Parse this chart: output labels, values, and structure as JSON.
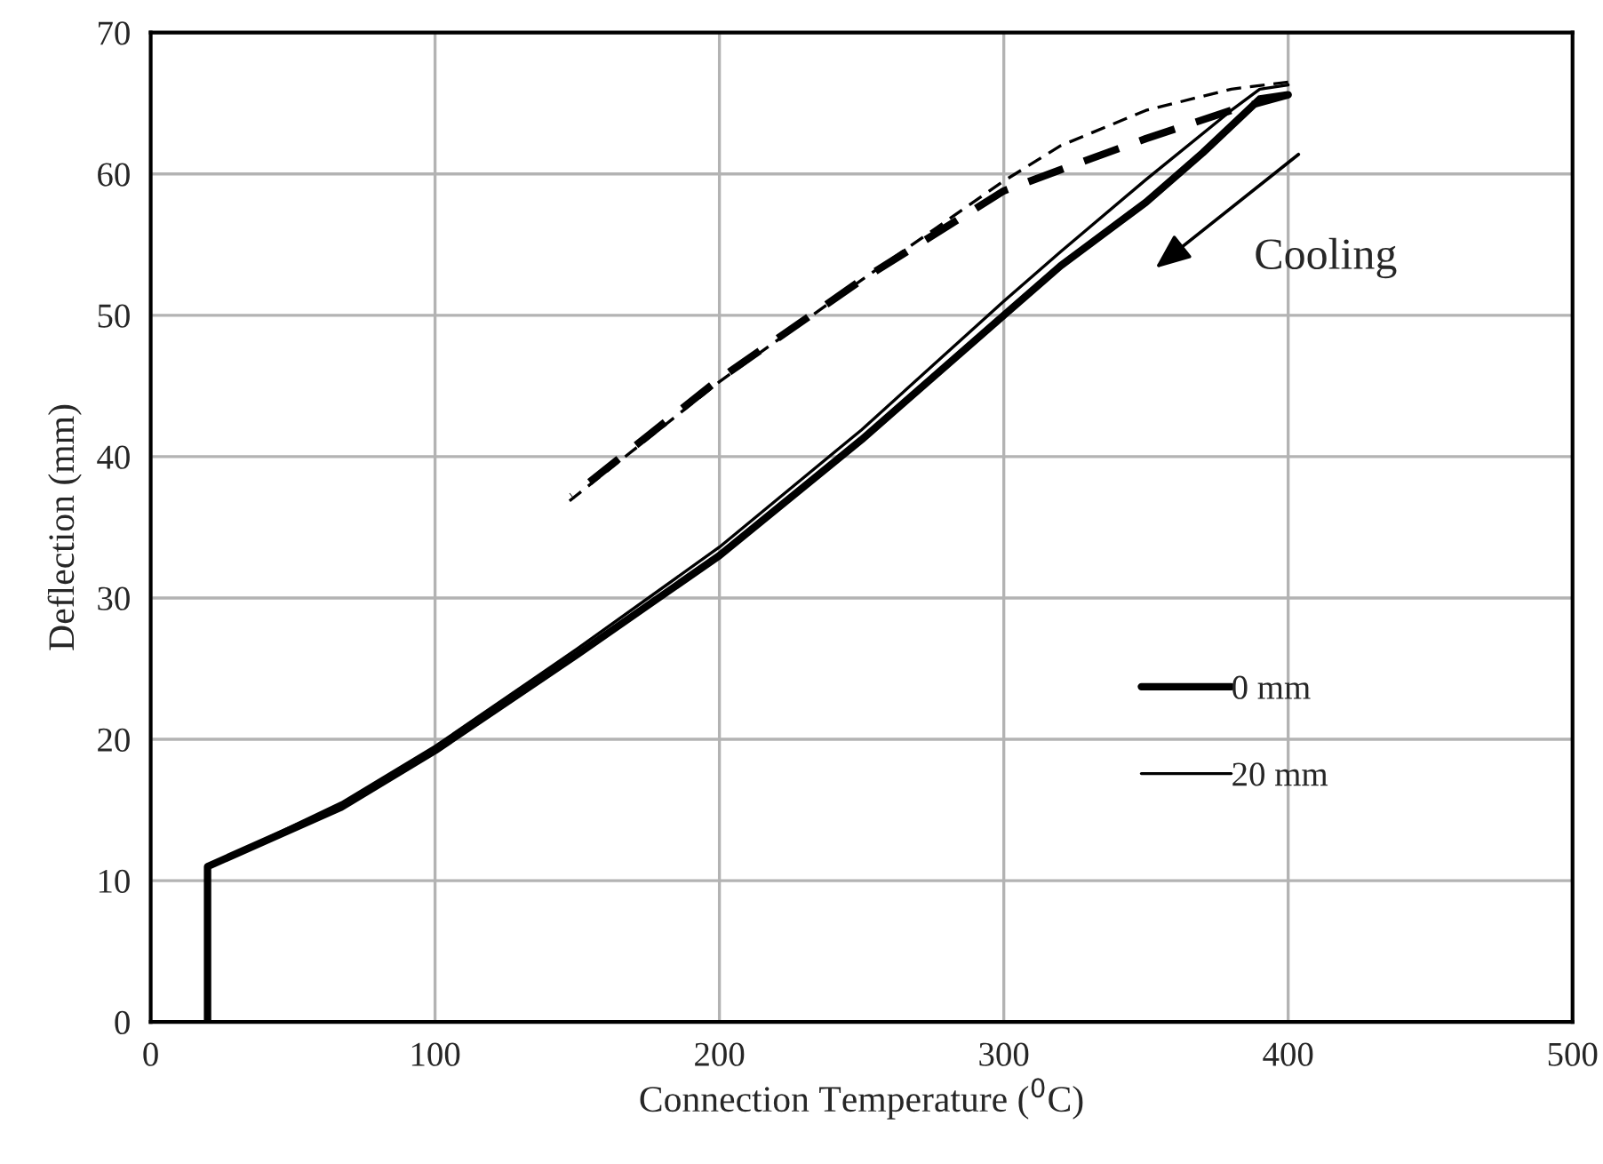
{
  "chart_data": {
    "type": "line",
    "xlabel": "Connection Temperature ($^{0}$C)",
    "ylabel": "Deflection (mm)",
    "xlim": [
      0,
      500
    ],
    "ylim": [
      0,
      70
    ],
    "xticks": [
      0,
      100,
      200,
      300,
      400,
      500
    ],
    "yticks": [
      0,
      10,
      20,
      30,
      40,
      50,
      60,
      70
    ],
    "grid": true,
    "legend": "bottom right",
    "marker": "none",
    "series": [
      {
        "name": "0 mm",
        "color": "#000000",
        "line_style": "solid",
        "x": [
          20,
          20,
          67,
          100,
          150,
          200,
          250,
          300,
          320,
          350,
          370,
          390,
          400
        ],
        "values": [
          0,
          11,
          15.2,
          19.2,
          26,
          33,
          41.2,
          50,
          53.5,
          58,
          61.5,
          65.3,
          65.6
        ]
      },
      {
        "color": "#000000",
        "line_style": "dashed",
        "x": [
          400,
          380,
          350,
          320,
          300,
          250,
          200,
          175,
          148
        ],
        "values": [
          65.6,
          64.5,
          62.5,
          60.3,
          58.8,
          52.5,
          45.5,
          41.5,
          37.2
        ]
      },
      {
        "name": "20 mm",
        "color": "#000000",
        "line_style": "solid",
        "x": [
          20,
          20,
          67,
          100,
          150,
          200,
          250,
          300,
          320,
          350,
          380,
          390,
          400
        ],
        "values": [
          0,
          11,
          15.5,
          19.5,
          26.4,
          33.6,
          41.9,
          51,
          54.5,
          59.6,
          64.5,
          66,
          66.3
        ]
      },
      {
        "color": "#000000",
        "line_style": "dashed",
        "x": [
          400,
          380,
          350,
          320,
          300,
          250,
          200,
          145
        ],
        "values": [
          66.5,
          66,
          64.5,
          62,
          59.5,
          52.5,
          45.3,
          36.5
        ]
      }
    ],
    "annotations": [
      "Cooling"
    ]
  }
}
